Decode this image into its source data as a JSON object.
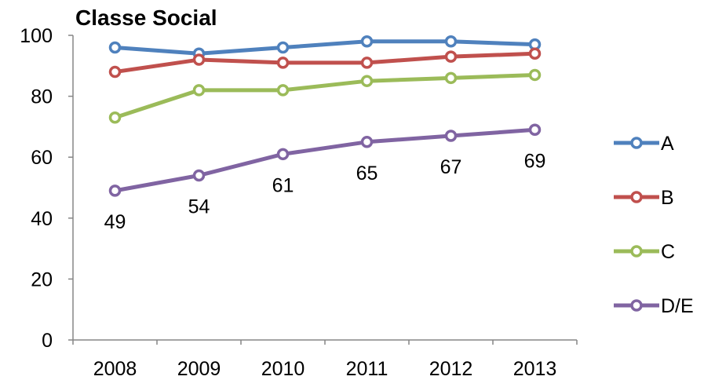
{
  "chart_data": {
    "type": "line",
    "title": "Classe Social",
    "xlabel": "",
    "ylabel": "",
    "categories": [
      "2008",
      "2009",
      "2010",
      "2011",
      "2012",
      "2013"
    ],
    "ylim": [
      0,
      100
    ],
    "yticks": [
      0,
      20,
      40,
      60,
      80,
      100
    ],
    "grid": false,
    "legend_position": "right",
    "series": [
      {
        "name": "A",
        "color": "#4F81BD",
        "values": [
          96,
          94,
          96,
          98,
          98,
          97
        ]
      },
      {
        "name": "B",
        "color": "#C0504D",
        "values": [
          88,
          92,
          91,
          91,
          93,
          94
        ]
      },
      {
        "name": "C",
        "color": "#9BBB59",
        "values": [
          73,
          82,
          82,
          85,
          86,
          87
        ]
      },
      {
        "name": "D/E",
        "color": "#8064A2",
        "values": [
          49,
          54,
          61,
          65,
          67,
          69
        ],
        "data_labels": [
          "49",
          "54",
          "61",
          "65",
          "67",
          "69"
        ]
      }
    ]
  }
}
